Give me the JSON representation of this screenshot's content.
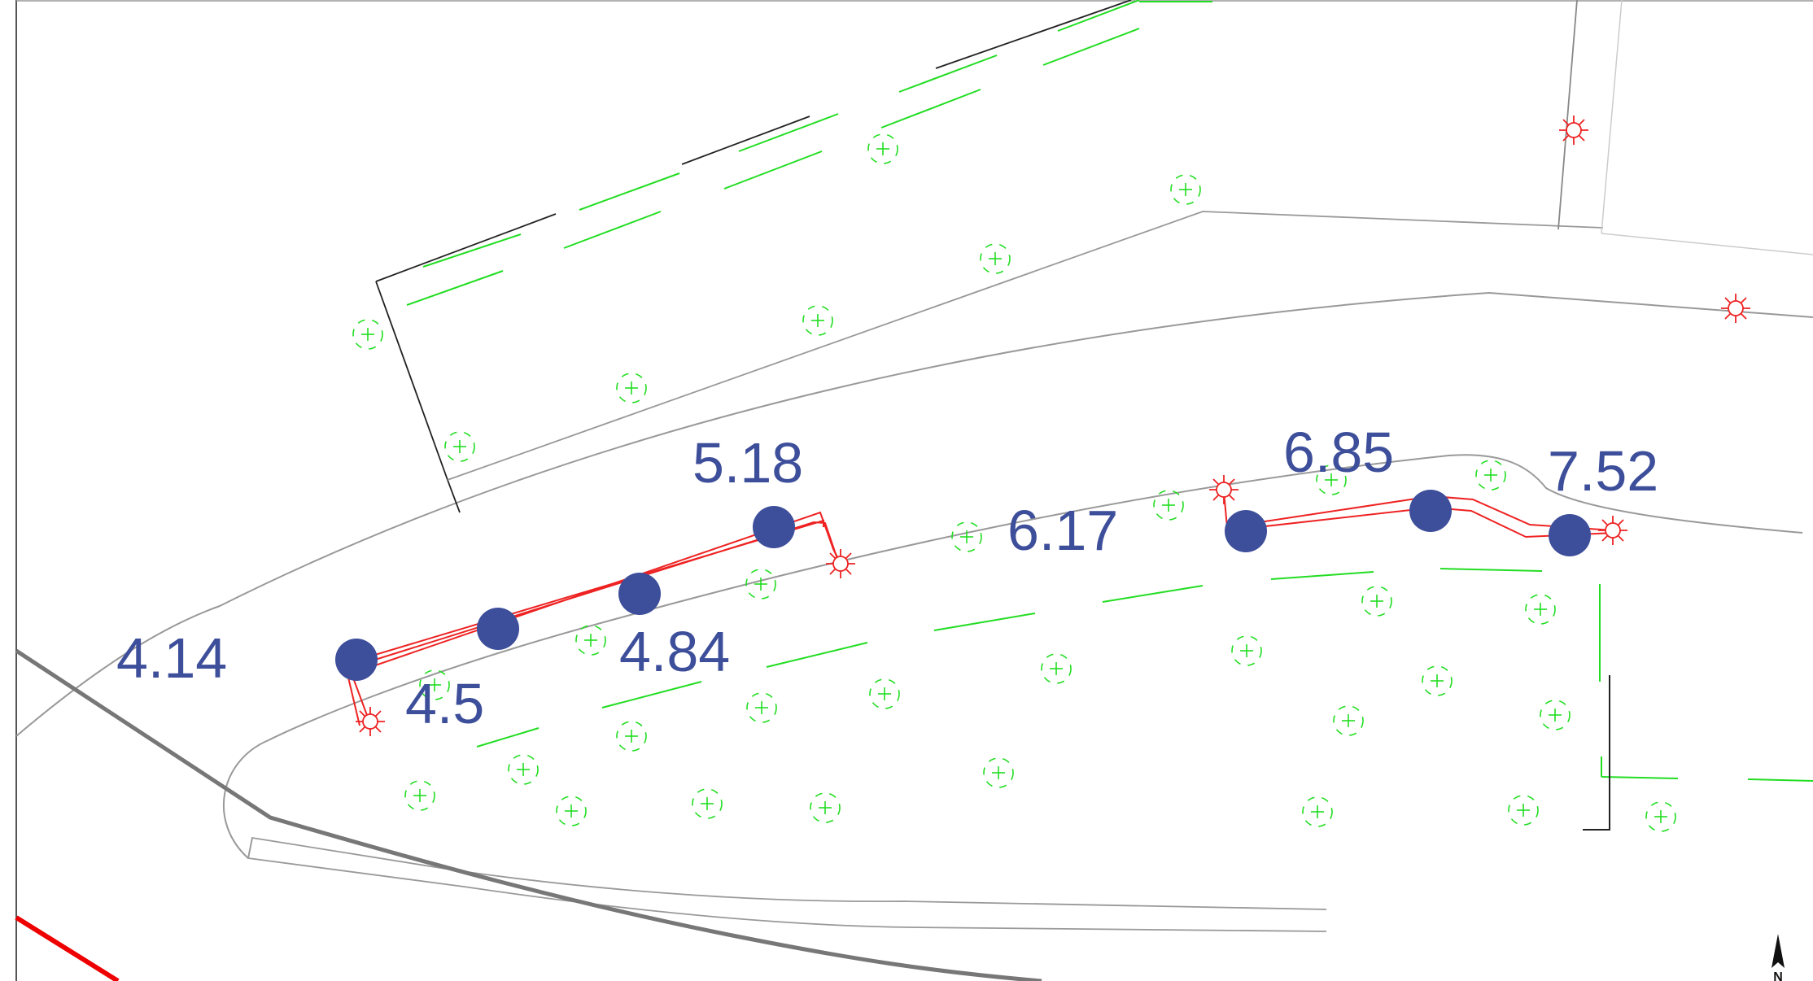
{
  "map": {
    "measurements": [
      "4.14",
      "4.5",
      "4.84",
      "5.18",
      "6.17",
      "6.85",
      "7.52"
    ],
    "north_label": "N",
    "colors": {
      "label": "#3d4e9a",
      "pole": "#3d4e9a",
      "cable": "#ee2222",
      "tree": "#22dd22",
      "lamp": "#ee2222",
      "road": "#888888"
    }
  }
}
